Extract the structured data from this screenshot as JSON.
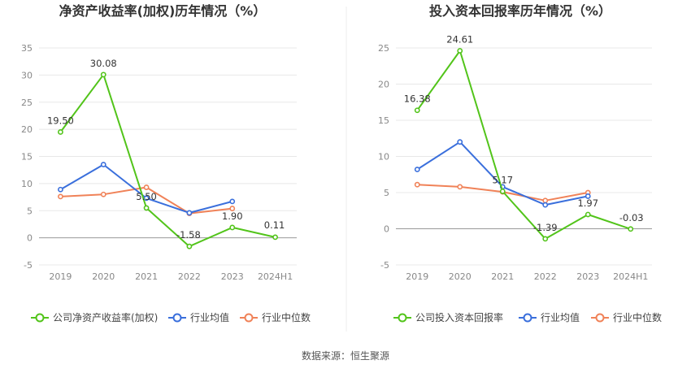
{
  "source_label": "数据来源：恒生聚源",
  "colors": {
    "company": "#52c41a",
    "industry_avg": "#3a6fdc",
    "industry_median": "#f08258",
    "grid": "#e8e8e8",
    "axis": "#cccccc"
  },
  "legend_icons": [
    "circle-line-icon",
    "circle-line-icon",
    "circle-line-icon"
  ],
  "chart_data": [
    {
      "type": "line",
      "title": "净资产收益率(加权)历年情况（%）",
      "categories": [
        "2019",
        "2020",
        "2021",
        "2022",
        "2023",
        "2024H1"
      ],
      "ylim": [
        -5,
        35
      ],
      "yticks": [
        -5,
        0,
        5,
        10,
        15,
        20,
        25,
        30,
        35
      ],
      "grid": true,
      "legend_position": "bottom",
      "series": [
        {
          "name": "公司净资产收益率(加权)",
          "values": [
            19.5,
            30.08,
            5.5,
            -1.58,
            1.9,
            0.11
          ],
          "labels": [
            "19.50",
            "30.08",
            "5.50",
            "-1.58",
            "1.90",
            "0.11"
          ]
        },
        {
          "name": "行业均值",
          "values": [
            8.9,
            13.5,
            7.3,
            4.6,
            6.7,
            null
          ]
        },
        {
          "name": "行业中位数",
          "values": [
            7.6,
            8.0,
            9.3,
            4.5,
            5.4,
            null
          ]
        }
      ]
    },
    {
      "type": "line",
      "title": "投入资本回报率历年情况（%）",
      "categories": [
        "2019",
        "2020",
        "2021",
        "2022",
        "2023",
        "2024H1"
      ],
      "ylim": [
        -5,
        25
      ],
      "yticks": [
        -5,
        0,
        5,
        10,
        15,
        20,
        25
      ],
      "grid": true,
      "legend_position": "bottom",
      "series": [
        {
          "name": "公司投入资本回报率",
          "values": [
            16.38,
            24.61,
            5.17,
            -1.39,
            1.97,
            -0.03
          ],
          "labels": [
            "16.38",
            "24.61",
            "5.17",
            "-1.39",
            "1.97",
            "-0.03"
          ]
        },
        {
          "name": "行业均值",
          "values": [
            8.2,
            12.0,
            5.8,
            3.3,
            4.5,
            null
          ]
        },
        {
          "name": "行业中位数",
          "values": [
            6.1,
            5.8,
            5.1,
            3.9,
            5.0,
            null
          ]
        }
      ]
    }
  ]
}
